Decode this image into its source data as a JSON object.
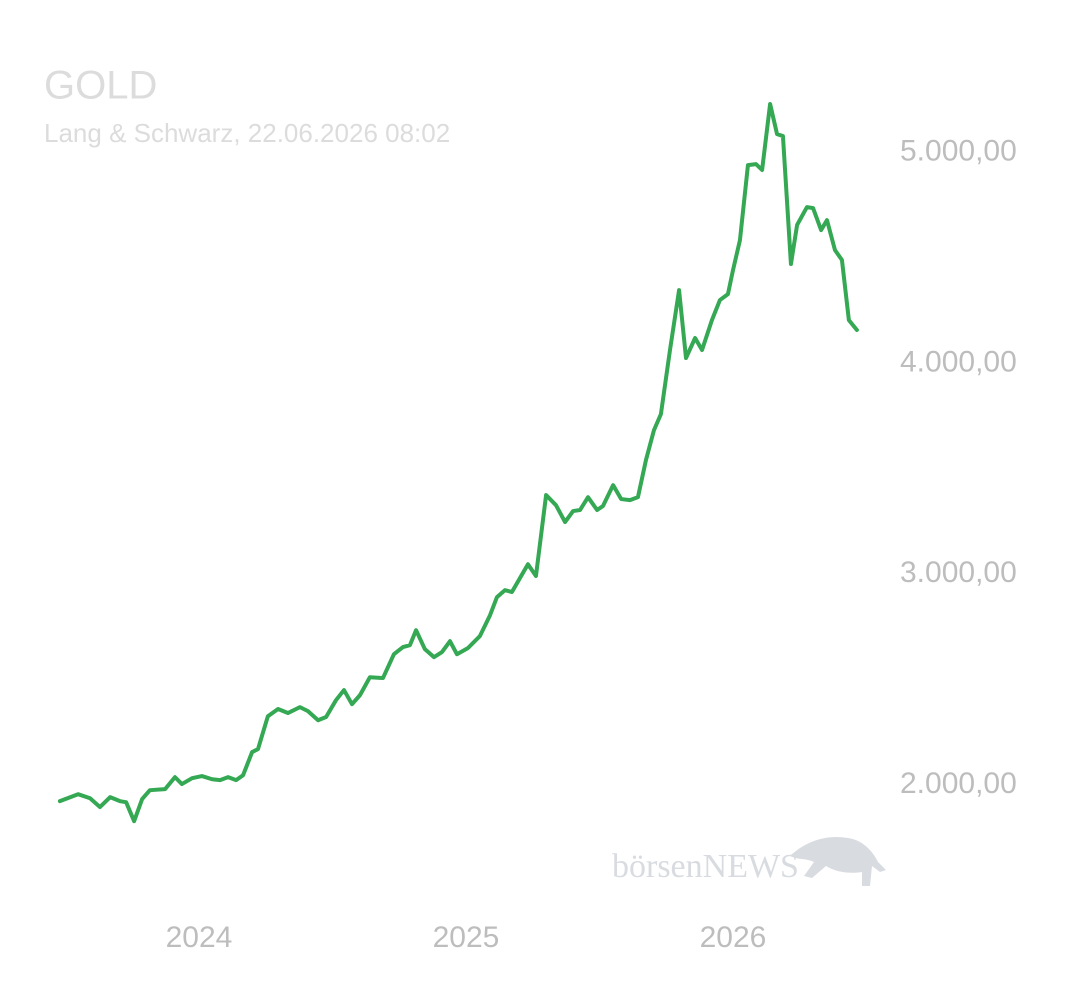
{
  "chart_data": {
    "type": "line",
    "title": "GOLD",
    "subtitle": "Lang & Schwarz, 22.06.2026 08:02",
    "watermark": "börsenNEWS",
    "color": "#34a853",
    "x": [
      2023.479,
      2023.547,
      2023.592,
      2023.629,
      2023.667,
      2023.704,
      2023.727,
      2023.757,
      2023.787,
      2023.816,
      2023.873,
      2023.91,
      2023.936,
      2023.974,
      2024.011,
      2024.049,
      2024.079,
      2024.109,
      2024.139,
      2024.165,
      2024.199,
      2024.221,
      2024.258,
      2024.296,
      2024.333,
      2024.378,
      2024.408,
      2024.446,
      2024.476,
      2024.513,
      2024.543,
      2024.573,
      2024.603,
      2024.64,
      2024.689,
      2024.73,
      2024.764,
      2024.79,
      2024.813,
      2024.846,
      2024.88,
      2024.91,
      2024.94,
      2024.966,
      2025.007,
      2025.052,
      2025.09,
      2025.116,
      2025.146,
      2025.172,
      2025.202,
      2025.232,
      2025.262,
      2025.3,
      2025.337,
      2025.371,
      2025.401,
      2025.427,
      2025.457,
      2025.491,
      2025.513,
      2025.551,
      2025.581,
      2025.614,
      2025.644,
      2025.674,
      2025.704,
      2025.73,
      2025.764,
      2025.798,
      2025.824,
      2025.858,
      2025.884,
      2025.921,
      2025.951,
      2025.981,
      2026.0,
      2026.026,
      2026.056,
      2026.086,
      2026.109,
      2026.139,
      2026.165,
      2026.187,
      2026.217,
      2026.24,
      2026.277,
      2026.3,
      2026.33,
      2026.352,
      2026.382,
      2026.408,
      2026.434,
      2026.464
    ],
    "values": [
      1924,
      1957,
      1938,
      1896,
      1943,
      1924,
      1919,
      1829,
      1934,
      1976,
      1981,
      2038,
      2005,
      2033,
      2043,
      2028,
      2024,
      2038,
      2024,
      2047,
      2157,
      2171,
      2327,
      2361,
      2342,
      2370,
      2351,
      2308,
      2323,
      2403,
      2451,
      2384,
      2427,
      2512,
      2508,
      2621,
      2655,
      2664,
      2735,
      2645,
      2607,
      2631,
      2683,
      2621,
      2650,
      2707,
      2806,
      2892,
      2925,
      2916,
      2982,
      3048,
      2992,
      3376,
      3328,
      3248,
      3300,
      3305,
      3366,
      3305,
      3324,
      3423,
      3357,
      3352,
      3366,
      3542,
      3684,
      3760,
      4064,
      4348,
      4026,
      4121,
      4064,
      4206,
      4301,
      4329,
      4443,
      4585,
      4941,
      4946,
      4918,
      5231,
      5088,
      5079,
      4472,
      4657,
      4742,
      4737,
      4633,
      4680,
      4538,
      4491,
      4206,
      4159
    ],
    "xlim": [
      2023.4,
      2026.6
    ],
    "xticks": [
      2024,
      2025,
      2026
    ],
    "ylim": [
      1550,
      5250
    ],
    "yticks": [
      {
        "value": 2000,
        "label": "2.000,00"
      },
      {
        "value": 3000,
        "label": "3.000,00"
      },
      {
        "value": 4000,
        "label": "4.000,00"
      },
      {
        "value": 5000,
        "label": "5.000,00"
      }
    ],
    "grid": false
  }
}
